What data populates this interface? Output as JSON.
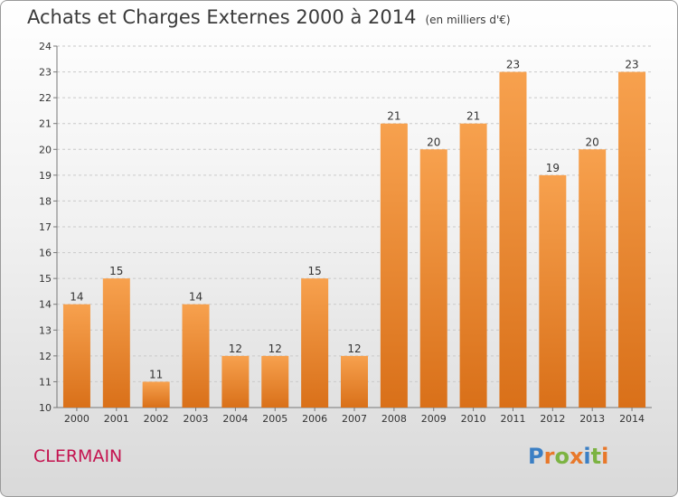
{
  "header": {
    "title": "Achats et Charges Externes 2000 à 2014",
    "subtitle": "(en milliers d'€)"
  },
  "footer": {
    "commune": "CLERMAIN",
    "logo_text": "Proxiti"
  },
  "colors": {
    "bar_light": "#F7A14E",
    "bar_dark": "#D97019",
    "commune_text": "#C4134F",
    "logo_letters": [
      "#3B7FC4",
      "#E8782A",
      "#7CB342",
      "#E8782A",
      "#3B7FC4",
      "#7CB342",
      "#E8782A"
    ]
  },
  "chart_data": {
    "type": "bar",
    "title": "Achats et Charges Externes 2000 à 2014",
    "subtitle": "(en milliers d'€)",
    "xlabel": "",
    "ylabel": "",
    "categories": [
      "2000",
      "2001",
      "2002",
      "2003",
      "2004",
      "2005",
      "2006",
      "2007",
      "2008",
      "2009",
      "2010",
      "2011",
      "2012",
      "2013",
      "2014"
    ],
    "values": [
      14,
      15,
      11,
      14,
      12,
      12,
      15,
      12,
      21,
      20,
      21,
      23,
      19,
      20,
      23
    ],
    "ylim": [
      10,
      24
    ],
    "yticks": [
      10,
      11,
      12,
      13,
      14,
      15,
      16,
      17,
      18,
      19,
      20,
      21,
      22,
      23,
      24
    ],
    "ytick_labels": [
      "10",
      "11",
      "12",
      "13",
      "14",
      "15",
      "16",
      "17",
      "18",
      "19",
      "20",
      "21",
      "22",
      "23",
      "24"
    ],
    "grid": "horizontal dashed",
    "legend": "none"
  }
}
